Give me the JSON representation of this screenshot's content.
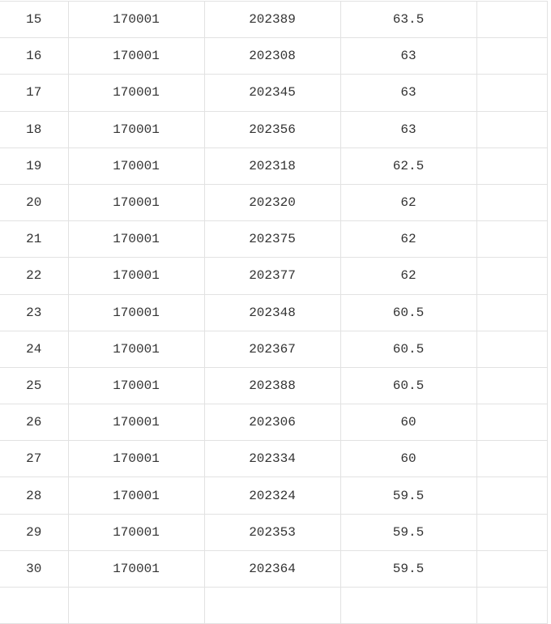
{
  "colors": {
    "border": "#e2e2e2",
    "text": "#333333",
    "background": "#ffffff"
  },
  "table": {
    "rows": [
      {
        "cells": [
          "15",
          "170001",
          "202389",
          "63.5",
          ""
        ]
      },
      {
        "cells": [
          "16",
          "170001",
          "202308",
          "63",
          ""
        ]
      },
      {
        "cells": [
          "17",
          "170001",
          "202345",
          "63",
          ""
        ]
      },
      {
        "cells": [
          "18",
          "170001",
          "202356",
          "63",
          ""
        ]
      },
      {
        "cells": [
          "19",
          "170001",
          "202318",
          "62.5",
          ""
        ]
      },
      {
        "cells": [
          "20",
          "170001",
          "202320",
          "62",
          ""
        ]
      },
      {
        "cells": [
          "21",
          "170001",
          "202375",
          "62",
          ""
        ]
      },
      {
        "cells": [
          "22",
          "170001",
          "202377",
          "62",
          ""
        ]
      },
      {
        "cells": [
          "23",
          "170001",
          "202348",
          "60.5",
          ""
        ]
      },
      {
        "cells": [
          "24",
          "170001",
          "202367",
          "60.5",
          ""
        ]
      },
      {
        "cells": [
          "25",
          "170001",
          "202388",
          "60.5",
          ""
        ]
      },
      {
        "cells": [
          "26",
          "170001",
          "202306",
          "60",
          ""
        ]
      },
      {
        "cells": [
          "27",
          "170001",
          "202334",
          "60",
          ""
        ]
      },
      {
        "cells": [
          "28",
          "170001",
          "202324",
          "59.5",
          ""
        ]
      },
      {
        "cells": [
          "29",
          "170001",
          "202353",
          "59.5",
          ""
        ]
      },
      {
        "cells": [
          "30",
          "170001",
          "202364",
          "59.5",
          ""
        ]
      },
      {
        "cells": [
          "",
          "",
          "",
          "",
          ""
        ]
      }
    ]
  }
}
